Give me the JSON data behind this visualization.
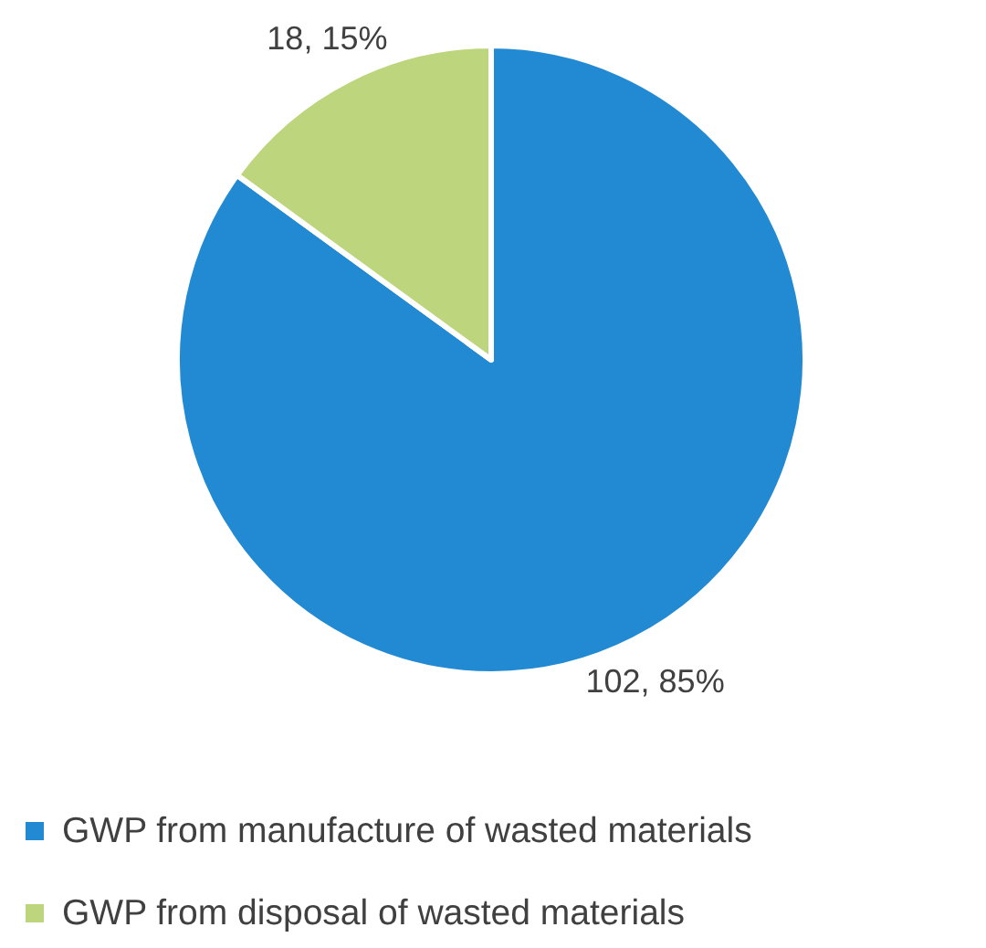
{
  "chart_data": {
    "type": "pie",
    "categories": [
      "GWP from manufacture of wasted materials",
      "GWP from disposal of wasted materials"
    ],
    "values": [
      102,
      18
    ],
    "colors": [
      "#228ad2",
      "#bdd67e"
    ],
    "value_labels": [
      "102, 85%",
      "18, 15%"
    ],
    "legend": "bottom"
  }
}
